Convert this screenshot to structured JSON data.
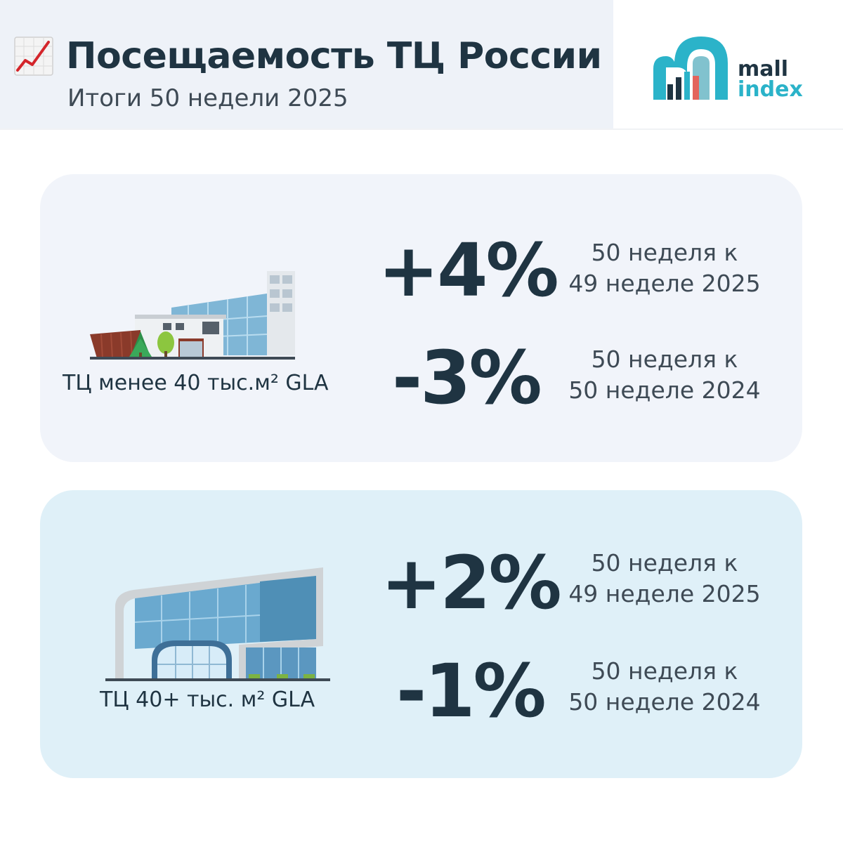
{
  "header": {
    "title": "Посещаемость ТЦ России",
    "subtitle": "Итоги 50 недели 2025",
    "icon": "chart-increasing-icon"
  },
  "logo": {
    "line1": "mall",
    "line2": "index",
    "color_dark": "#1f3442",
    "color_accent": "#2bb3c9"
  },
  "sections": [
    {
      "label": "ТЦ менее 40 тыс.м² GLA",
      "illustration": "small-mall-icon",
      "metrics": [
        {
          "value": "+4%",
          "line1": "50 неделя к",
          "line2": "49 неделе 2025"
        },
        {
          "value": "-3%",
          "line1": "50 неделя к",
          "line2": "50 неделе 2024"
        }
      ]
    },
    {
      "label": "ТЦ 40+ тыс. м² GLA",
      "illustration": "large-mall-icon",
      "metrics": [
        {
          "value": "+2%",
          "line1": "50 неделя к",
          "line2": "49 неделе 2025"
        },
        {
          "value": "-1%",
          "line1": "50 неделя к",
          "line2": "50 неделе 2024"
        }
      ]
    }
  ],
  "colors": {
    "card1_bg": "#f1f4fa",
    "card2_bg": "#dff0f8",
    "text": "#1f3442"
  }
}
